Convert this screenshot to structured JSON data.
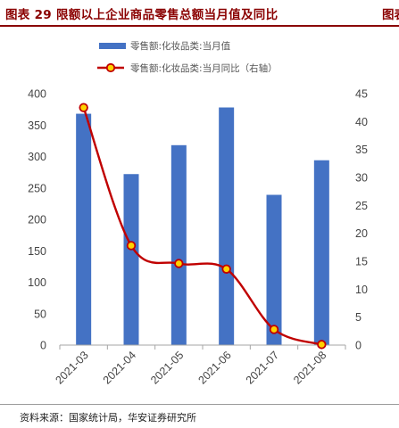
{
  "figure": {
    "title": "图表 29  限额以上企业商品零售总额当月值及同比",
    "next_title_fragment": "图表",
    "source": "资料来源：国家统计局，华安证券研究所"
  },
  "colors": {
    "bar": "#4472c4",
    "line": "#c00000",
    "marker_fill": "#ffd200",
    "title": "#8a0000"
  },
  "chart_data": {
    "type": "bar",
    "categories": [
      "2021-03",
      "2021-04",
      "2021-05",
      "2021-06",
      "2021-07",
      "2021-08"
    ],
    "series": [
      {
        "name": "零售额:化妆品类:当月值",
        "type": "bar",
        "axis": "left",
        "values": [
          368,
          272,
          318,
          378,
          239,
          294
        ]
      },
      {
        "name": "零售额:化妆品类:当月同比（右轴）",
        "type": "line",
        "axis": "right",
        "smooth": true,
        "values": [
          42.5,
          17.8,
          14.6,
          13.6,
          2.8,
          0.1
        ]
      }
    ],
    "y_left": {
      "ylim": [
        0,
        400
      ],
      "ticks": [
        0,
        50,
        100,
        150,
        200,
        250,
        300,
        350,
        400
      ]
    },
    "y_right": {
      "ylim": [
        0,
        45
      ],
      "ticks": [
        0,
        5,
        10,
        15,
        20,
        25,
        30,
        35,
        40,
        45
      ]
    },
    "legend": "top",
    "grid": false
  }
}
